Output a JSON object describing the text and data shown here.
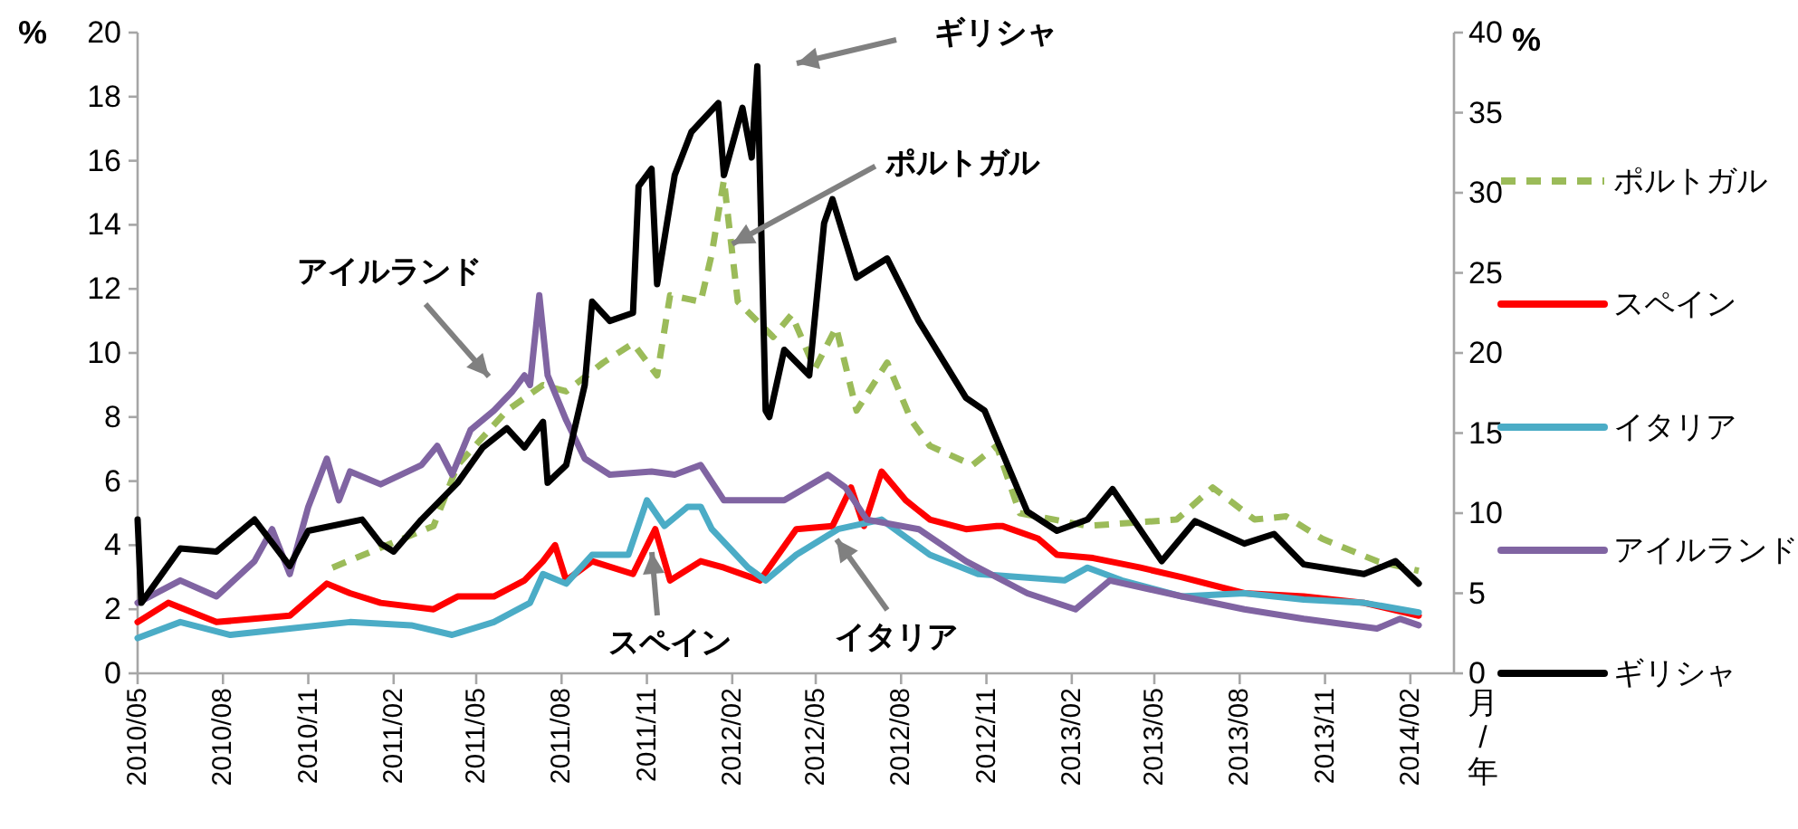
{
  "chart_data": {
    "type": "line",
    "xlabel": "月/年",
    "ylabel": "%",
    "y2label": "%",
    "xlim": [
      "2010-05-01",
      "2014-03-20"
    ],
    "xticks": [
      {
        "value": "2010-05-01",
        "label": "2010/05"
      },
      {
        "value": "2010-08-01",
        "label": "2010/08"
      },
      {
        "value": "2010-11-01",
        "label": "2010/11"
      },
      {
        "value": "2011-02-01",
        "label": "2011/02"
      },
      {
        "value": "2011-05-01",
        "label": "2011/05"
      },
      {
        "value": "2011-08-01",
        "label": "2011/08"
      },
      {
        "value": "2011-11-01",
        "label": "2011/11"
      },
      {
        "value": "2012-02-01",
        "label": "2012/02"
      },
      {
        "value": "2012-05-01",
        "label": "2012/05"
      },
      {
        "value": "2012-08-01",
        "label": "2012/08"
      },
      {
        "value": "2012-11-01",
        "label": "2012/11"
      },
      {
        "value": "2013-02-01",
        "label": "2013/02"
      },
      {
        "value": "2013-05-01",
        "label": "2013/05"
      },
      {
        "value": "2013-08-01",
        "label": "2013/08"
      },
      {
        "value": "2013-11-01",
        "label": "2013/11"
      },
      {
        "value": "2014-02-01",
        "label": "2014/02"
      }
    ],
    "ylim": [
      0,
      20
    ],
    "yticks": [
      0,
      2,
      4,
      6,
      8,
      10,
      12,
      14,
      16,
      18,
      20
    ],
    "y2lim": [
      0,
      40
    ],
    "y2ticks": [
      0,
      5,
      10,
      15,
      20,
      25,
      30,
      35,
      40
    ],
    "legend": "right",
    "series": [
      {
        "name": "ポルトガル",
        "color": "#9bbb59",
        "line_style": "dashed",
        "x": [
          "2010-11-27",
          "2011-03-16",
          "2011-04-11",
          "2011-06-03",
          "2011-07-12",
          "2011-08-06",
          "2011-09-15",
          "2011-10-17",
          "2011-11-12",
          "2011-11-26",
          "2011-12-29",
          "2012-01-10",
          "2012-01-23",
          "2012-02-07",
          "2012-03-16",
          "2012-04-05",
          "2012-04-30",
          "2012-05-23",
          "2012-06-14",
          "2012-07-17",
          "2012-08-12",
          "2012-09-01",
          "2012-10-17",
          "2012-11-12",
          "2012-12-07",
          "2013-02-18",
          "2013-05-25",
          "2013-07-03",
          "2013-08-17",
          "2013-09-20",
          "2013-10-29",
          "2013-12-27",
          "2014-02-10"
        ],
        "values": [
          3.3,
          4.6,
          6.5,
          8.2,
          9.0,
          8.8,
          9.7,
          10.3,
          9.3,
          11.8,
          11.6,
          13.1,
          15.4,
          11.6,
          10.5,
          11.2,
          9.5,
          10.8,
          8.2,
          9.7,
          7.9,
          7.1,
          6.5,
          7.1,
          5.0,
          4.6,
          4.8,
          5.8,
          4.8,
          4.9,
          4.2,
          3.5,
          3.2
        ]
      },
      {
        "name": "スペイン",
        "color": "#ff0000",
        "x": [
          "2010-05-01",
          "2010-06-03",
          "2010-07-25",
          "2010-10-12",
          "2010-11-21",
          "2010-12-16",
          "2011-01-18",
          "2011-03-16",
          "2011-04-11",
          "2011-05-20",
          "2011-06-22",
          "2011-07-12",
          "2011-07-25",
          "2011-08-06",
          "2011-09-03",
          "2011-10-17",
          "2011-11-10",
          "2011-11-26",
          "2011-12-29",
          "2012-01-23",
          "2012-03-02",
          "2012-04-10",
          "2012-05-19",
          "2012-06-08",
          "2012-06-22",
          "2012-07-11",
          "2012-08-06",
          "2012-09-01",
          "2012-10-10",
          "2012-11-12",
          "2012-11-18",
          "2012-12-27",
          "2013-01-16",
          "2013-02-24",
          "2013-04-16",
          "2013-05-31",
          "2013-08-06",
          "2013-10-09",
          "2013-12-13",
          "2014-02-10"
        ],
        "values": [
          1.6,
          2.2,
          1.6,
          1.8,
          2.8,
          2.5,
          2.2,
          2.0,
          2.4,
          2.4,
          2.9,
          3.5,
          4.0,
          2.9,
          3.5,
          3.1,
          4.5,
          2.9,
          3.5,
          3.3,
          2.9,
          4.5,
          4.6,
          5.8,
          4.6,
          6.3,
          5.4,
          4.8,
          4.5,
          4.6,
          4.6,
          4.2,
          3.7,
          3.6,
          3.3,
          3.0,
          2.5,
          2.4,
          2.2,
          1.8
        ]
      },
      {
        "name": "イタリア",
        "color": "#4bacc6",
        "x": [
          "2010-05-01",
          "2010-06-16",
          "2010-08-09",
          "2010-10-12",
          "2010-12-16",
          "2011-02-20",
          "2011-04-05",
          "2011-05-20",
          "2011-06-28",
          "2011-07-12",
          "2011-08-06",
          "2011-09-03",
          "2011-10-12",
          "2011-11-01",
          "2011-11-20",
          "2011-12-15",
          "2011-12-29",
          "2012-01-10",
          "2012-02-18",
          "2012-03-08",
          "2012-04-10",
          "2012-05-25",
          "2012-07-11",
          "2012-09-01",
          "2012-10-23",
          "2013-01-24",
          "2013-02-18",
          "2013-03-27",
          "2013-05-31",
          "2013-08-06",
          "2013-10-09",
          "2013-12-13",
          "2014-02-10"
        ],
        "values": [
          1.1,
          1.6,
          1.2,
          1.4,
          1.6,
          1.5,
          1.2,
          1.6,
          2.2,
          3.1,
          2.8,
          3.7,
          3.7,
          5.4,
          4.6,
          5.2,
          5.2,
          4.5,
          3.3,
          2.9,
          3.7,
          4.5,
          4.8,
          3.7,
          3.1,
          2.9,
          3.3,
          2.9,
          2.4,
          2.5,
          2.3,
          2.2,
          1.9
        ]
      },
      {
        "name": "アイルランド",
        "color": "#8064a2",
        "x": [
          "2010-05-01",
          "2010-06-16",
          "2010-07-25",
          "2010-09-04",
          "2010-09-23",
          "2010-10-12",
          "2010-11-01",
          "2010-11-21",
          "2010-12-04",
          "2010-12-16",
          "2011-01-18",
          "2011-03-03",
          "2011-03-20",
          "2011-04-05",
          "2011-04-25",
          "2011-05-20",
          "2011-06-09",
          "2011-06-22",
          "2011-06-28",
          "2011-07-08",
          "2011-07-17",
          "2011-08-06",
          "2011-08-26",
          "2011-09-22",
          "2011-11-06",
          "2011-12-01",
          "2011-12-29",
          "2012-01-23",
          "2012-03-28",
          "2012-05-14",
          "2012-06-02",
          "2012-06-25",
          "2012-08-20",
          "2012-10-10",
          "2012-12-15",
          "2013-02-05",
          "2013-03-14",
          "2013-05-31",
          "2013-08-06",
          "2013-10-09",
          "2013-12-27",
          "2014-01-21",
          "2014-02-10"
        ],
        "values": [
          2.2,
          2.9,
          2.4,
          3.5,
          4.5,
          3.1,
          5.2,
          6.7,
          5.4,
          6.3,
          5.9,
          6.5,
          7.1,
          6.2,
          7.6,
          8.2,
          8.8,
          9.3,
          9.0,
          11.8,
          9.3,
          7.9,
          6.7,
          6.2,
          6.3,
          6.2,
          6.5,
          5.4,
          5.4,
          6.2,
          5.8,
          4.8,
          4.5,
          3.5,
          2.5,
          2.0,
          2.9,
          2.4,
          2.0,
          1.7,
          1.4,
          1.7,
          1.5
        ]
      },
      {
        "name": "ギリシャ",
        "color": "#000000",
        "axis": "y2",
        "x": [
          "2010-05-01",
          "2010-05-05",
          "2010-06-16",
          "2010-07-25",
          "2010-09-04",
          "2010-10-12",
          "2010-11-01",
          "2010-12-29",
          "2011-01-18",
          "2011-02-01",
          "2011-03-03",
          "2011-04-11",
          "2011-05-08",
          "2011-06-03",
          "2011-06-22",
          "2011-07-12",
          "2011-07-17",
          "2011-08-06",
          "2011-08-26",
          "2011-09-03",
          "2011-09-22",
          "2011-10-17",
          "2011-10-23",
          "2011-11-06",
          "2011-11-12",
          "2011-12-01",
          "2011-12-19",
          "2012-01-17",
          "2012-01-23",
          "2012-02-12",
          "2012-02-22",
          "2012-02-28",
          "2012-03-08",
          "2012-03-12",
          "2012-03-28",
          "2012-04-24",
          "2012-05-10",
          "2012-05-19",
          "2012-06-14",
          "2012-07-17",
          "2012-08-20",
          "2012-10-10",
          "2012-10-30",
          "2012-12-15",
          "2013-01-16",
          "2013-02-18",
          "2013-03-17",
          "2013-05-09",
          "2013-06-14",
          "2013-08-06",
          "2013-09-07",
          "2013-10-09",
          "2013-12-13",
          "2014-01-16",
          "2014-02-10"
        ],
        "values": [
          9.6,
          4.4,
          7.8,
          7.6,
          9.6,
          6.7,
          8.9,
          9.6,
          8.1,
          7.6,
          9.6,
          11.9,
          14.1,
          15.3,
          14.1,
          15.7,
          11.9,
          13.0,
          18.0,
          23.2,
          22.0,
          22.5,
          30.4,
          31.5,
          24.3,
          31.1,
          33.8,
          35.6,
          31.1,
          35.3,
          32.2,
          37.9,
          16.4,
          16.0,
          20.2,
          18.6,
          28.1,
          29.6,
          24.7,
          25.9,
          22.0,
          17.2,
          16.4,
          10.1,
          8.9,
          9.6,
          11.5,
          7.0,
          9.5,
          8.1,
          8.7,
          6.8,
          6.2,
          7.0,
          5.6
        ]
      }
    ],
    "annotations": [
      "ギリシャ",
      {
        "text": "ポルトガル",
        "x": "2012-02-01",
        "y": 13.4
      },
      "アイルランド",
      "スペイン",
      "イタリア"
    ]
  }
}
